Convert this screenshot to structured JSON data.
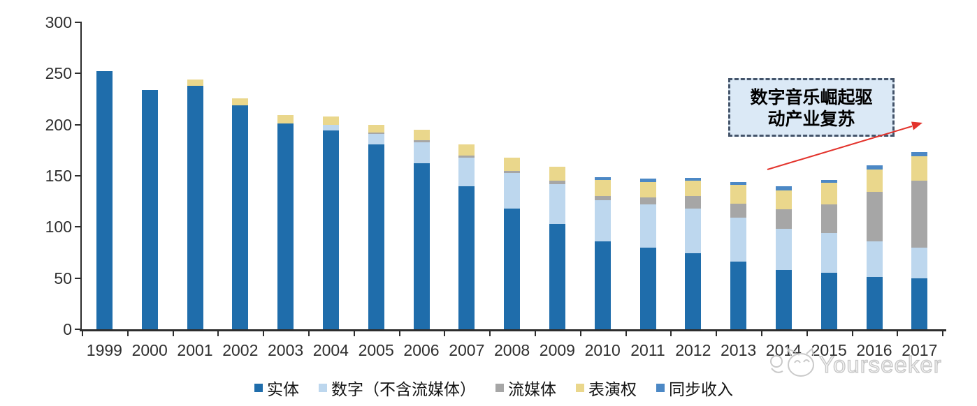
{
  "chart_data": {
    "type": "bar",
    "stacked": true,
    "title": "",
    "categories": [
      "1999",
      "2000",
      "2001",
      "2002",
      "2003",
      "2004",
      "2005",
      "2006",
      "2007",
      "2008",
      "2009",
      "2010",
      "2011",
      "2012",
      "2013",
      "2014",
      "2015",
      "2016",
      "2017"
    ],
    "series": [
      {
        "name": "实体",
        "color": "#1F6DAB",
        "values": [
          252,
          234,
          238,
          219,
          201,
          194,
          181,
          162,
          140,
          118,
          103,
          86,
          80,
          74,
          66,
          58,
          55,
          51,
          50
        ]
      },
      {
        "name": "数字（不含流媒体）",
        "color": "#BDD7EE",
        "values": [
          0,
          0,
          0,
          0,
          0,
          6,
          10,
          21,
          28,
          35,
          39,
          40,
          42,
          44,
          43,
          40,
          39,
          35,
          30
        ]
      },
      {
        "name": "流媒体",
        "color": "#A6A6A6",
        "values": [
          0,
          0,
          0,
          0,
          0,
          0,
          1,
          2,
          2,
          2,
          3,
          4,
          7,
          12,
          14,
          19,
          28,
          48,
          65
        ]
      },
      {
        "name": "表演权",
        "color": "#EAD78C",
        "values": [
          0,
          0,
          6,
          7,
          8,
          8,
          8,
          10,
          11,
          13,
          14,
          16,
          15,
          15,
          18,
          19,
          21,
          22,
          24
        ]
      },
      {
        "name": "同步收入",
        "color": "#4C88C5",
        "values": [
          0,
          0,
          0,
          0,
          0,
          0,
          0,
          0,
          0,
          0,
          0,
          3,
          3,
          3,
          3,
          4,
          3,
          4,
          4
        ]
      }
    ],
    "ylim": [
      0,
      300
    ],
    "yticks": [
      0,
      50,
      100,
      150,
      200,
      250,
      300
    ],
    "xlabel": "",
    "ylabel": "",
    "grid": false,
    "legend_position": "bottom"
  },
  "annotation": {
    "line1": "数字音乐崛起驱",
    "line2": "动产业复苏",
    "text_color": "#E3332C",
    "border_color": "#44546A",
    "bg_color": "#DBE9F6",
    "arrow_color": "#E3332C"
  },
  "watermark": {
    "text": "Yourseeker",
    "logo": "cat-mascot-icon",
    "color": "#C6C6C6"
  },
  "axis_color": "#2D2D2D",
  "label_color": "#2F2F2F"
}
